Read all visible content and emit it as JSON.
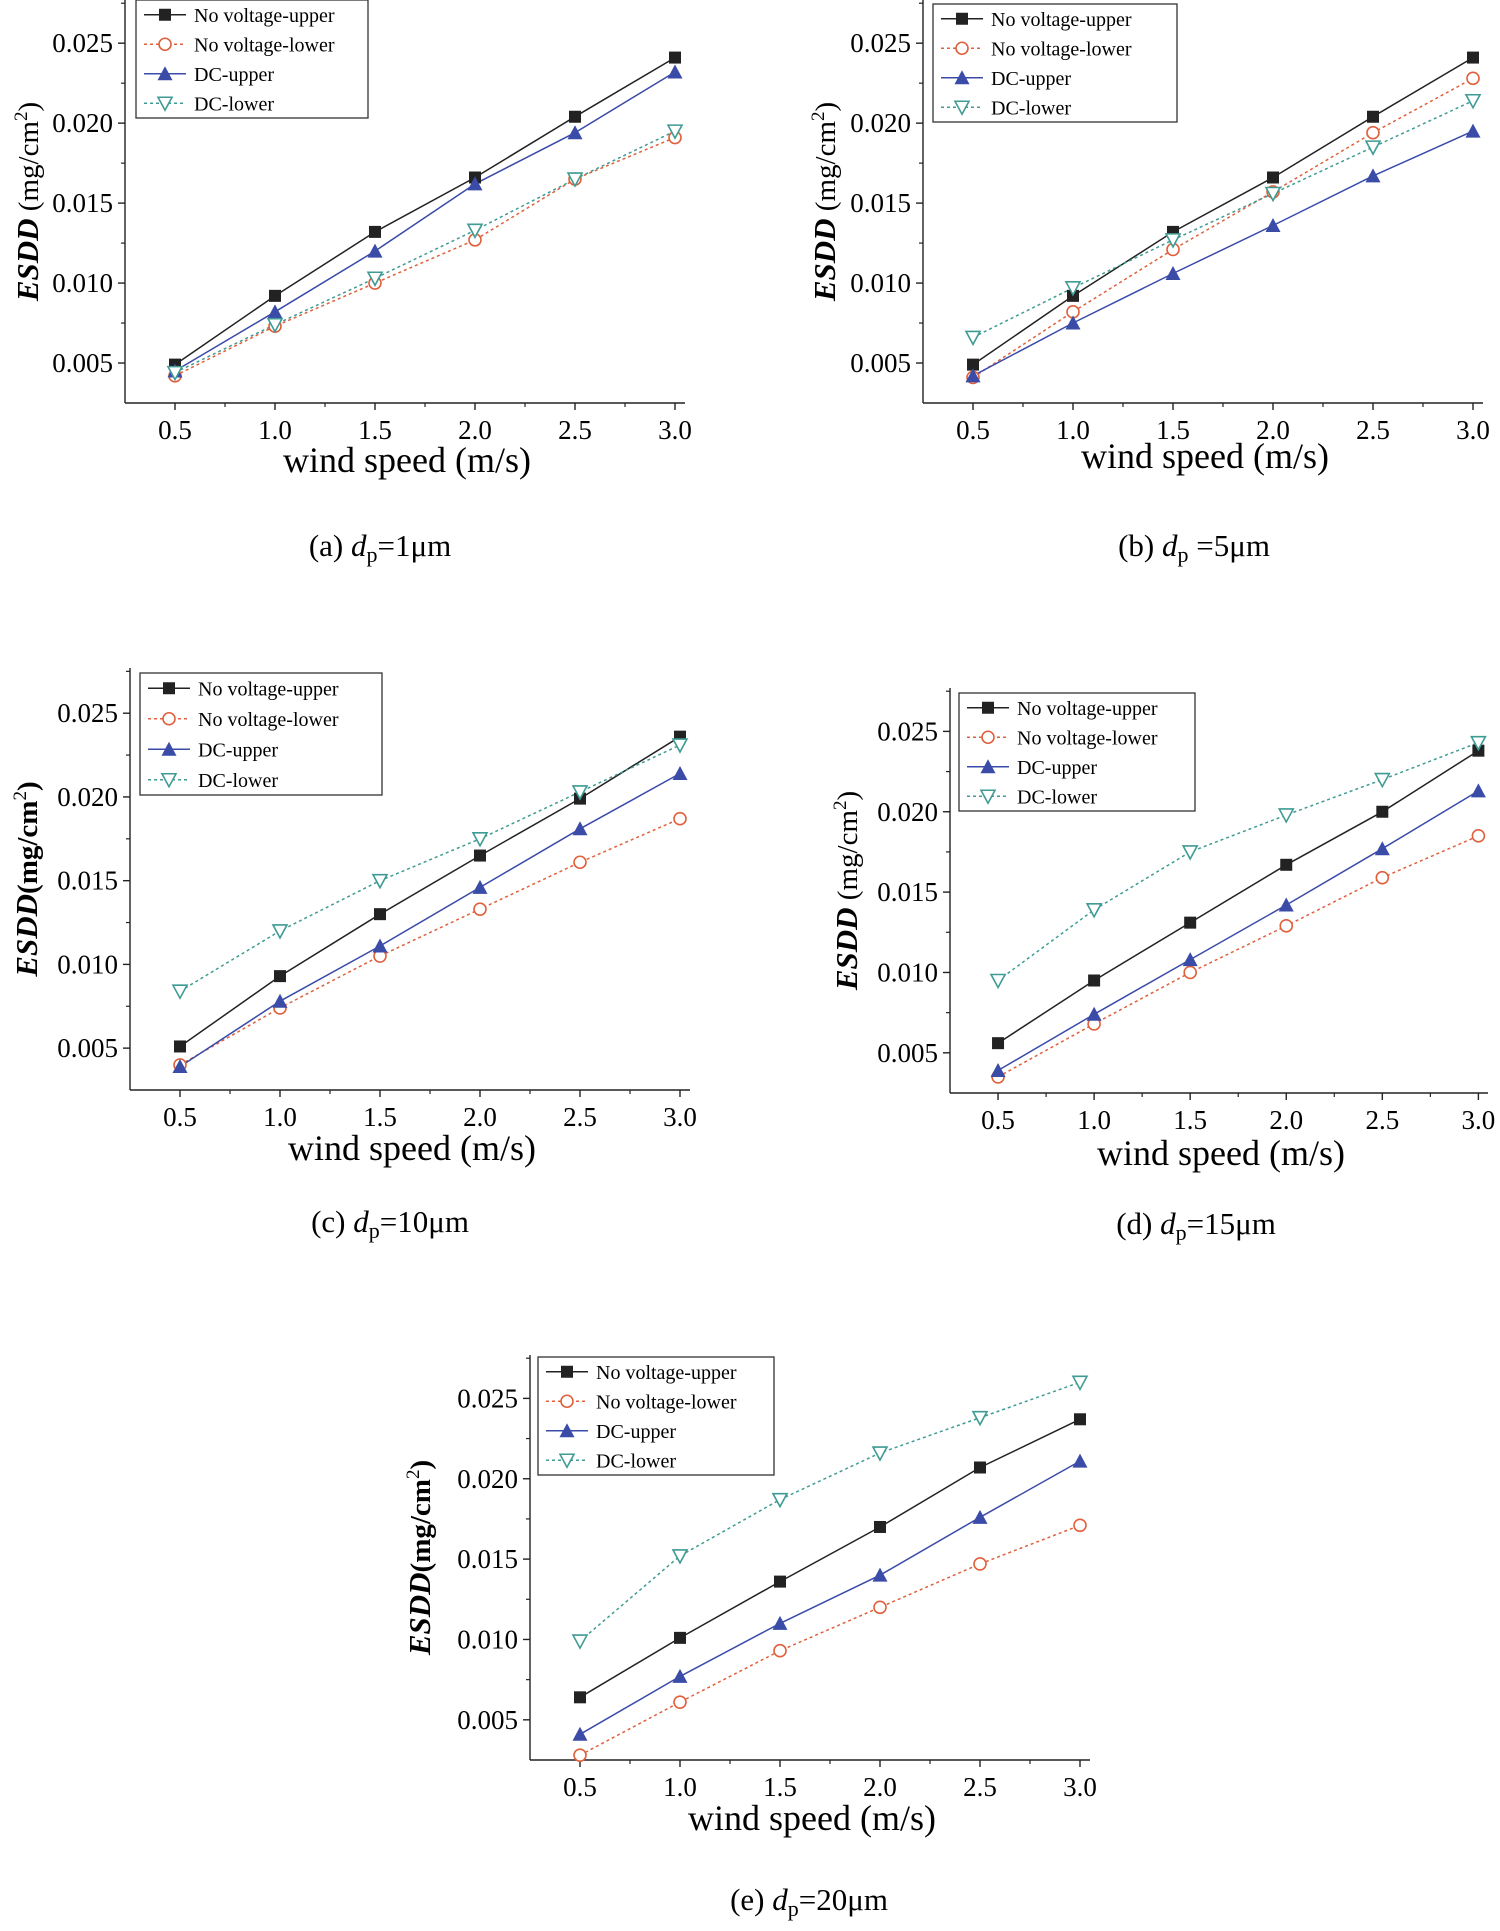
{
  "figure": {
    "series_styles": [
      {
        "name": "No voltage-upper",
        "color": "#222222",
        "marker": "square",
        "dashed": false
      },
      {
        "name": "No voltage-lower",
        "color": "#e0603c",
        "marker": "circle",
        "dashed": true
      },
      {
        "name": "DC-upper",
        "color": "#3a4ba8",
        "marker": "triangle-up",
        "dashed": false
      },
      {
        "name": "DC-lower",
        "color": "#3f9b93",
        "marker": "triangle-down",
        "dashed": true
      }
    ]
  },
  "chart_data": [
    {
      "id": "a",
      "type": "line",
      "caption_prefix": "(a) ",
      "caption_symbol": "d",
      "caption_sub": "p",
      "caption_suffix": "=1μm",
      "xlabel": "wind speed (m/s)",
      "ylabel_italic": "ESDD",
      "ylabel_units": " (mg/cm",
      "ylabel_sup": "2",
      "ylabel_close": ")",
      "x": [
        0.5,
        1.0,
        1.5,
        2.0,
        2.5,
        3.0
      ],
      "xticks": [
        "0.5",
        "1.0",
        "1.5",
        "2.0",
        "2.5",
        "3.0"
      ],
      "yticks": [
        "0.005",
        "0.010",
        "0.015",
        "0.020",
        "0.025"
      ],
      "xlim": [
        0.25,
        3.05
      ],
      "ylim": [
        0.0025,
        0.0277
      ],
      "legend_position": "top-left",
      "series": [
        {
          "name": "No voltage-upper",
          "values": [
            0.0049,
            0.0092,
            0.0132,
            0.0166,
            0.0204,
            0.0241
          ]
        },
        {
          "name": "No voltage-lower",
          "values": [
            0.0042,
            0.0073,
            0.01,
            0.0127,
            0.0165,
            0.0191
          ]
        },
        {
          "name": "DC-upper",
          "values": [
            0.0045,
            0.0082,
            0.012,
            0.0162,
            0.0194,
            0.0232
          ]
        },
        {
          "name": "DC-lower",
          "values": [
            0.0044,
            0.0074,
            0.0103,
            0.0133,
            0.0165,
            0.0195
          ]
        }
      ]
    },
    {
      "id": "b",
      "type": "line",
      "caption_prefix": "(b) ",
      "caption_symbol": "d",
      "caption_sub": "p",
      "caption_suffix": " =5μm",
      "xlabel": "wind speed (m/s)",
      "ylabel_italic": "ESDD",
      "ylabel_units": " (mg/cm",
      "ylabel_sup": "2",
      "ylabel_close": ")",
      "x": [
        0.5,
        1.0,
        1.5,
        2.0,
        2.5,
        3.0
      ],
      "xticks": [
        "0.5",
        "1.0",
        "1.5",
        "2.0",
        "2.5",
        "3.0"
      ],
      "yticks": [
        "0.005",
        "0.010",
        "0.015",
        "0.020",
        "0.025"
      ],
      "xlim": [
        0.25,
        3.05
      ],
      "ylim": [
        0.0025,
        0.0277
      ],
      "legend_position": "top-left",
      "series": [
        {
          "name": "No voltage-upper",
          "values": [
            0.0049,
            0.0092,
            0.0132,
            0.0166,
            0.0204,
            0.0241
          ]
        },
        {
          "name": "No voltage-lower",
          "values": [
            0.0041,
            0.0082,
            0.0121,
            0.0157,
            0.0194,
            0.0228
          ]
        },
        {
          "name": "DC-upper",
          "values": [
            0.0042,
            0.0075,
            0.0106,
            0.0136,
            0.0167,
            0.0195
          ]
        },
        {
          "name": "DC-lower",
          "values": [
            0.0066,
            0.0097,
            0.0127,
            0.0156,
            0.0185,
            0.0214
          ]
        }
      ]
    },
    {
      "id": "c",
      "type": "line",
      "caption_prefix": "(c) ",
      "caption_symbol": "d",
      "caption_sub": "p",
      "caption_suffix": "=10μm",
      "xlabel": "wind speed (m/s)",
      "ylabel_italic": "ESDD",
      "ylabel_units": "(mg/cm",
      "ylabel_sup": "2",
      "ylabel_close": ")",
      "x": [
        0.5,
        1.0,
        1.5,
        2.0,
        2.5,
        3.0
      ],
      "xticks": [
        "0.5",
        "1.0",
        "1.5",
        "2.0",
        "2.5",
        "3.0"
      ],
      "yticks": [
        "0.005",
        "0.010",
        "0.015",
        "0.020",
        "0.025"
      ],
      "xlim": [
        0.25,
        3.05
      ],
      "ylim": [
        0.0025,
        0.0277
      ],
      "legend_position": "top-left",
      "series": [
        {
          "name": "No voltage-upper",
          "values": [
            0.0051,
            0.0093,
            0.013,
            0.0165,
            0.0199,
            0.0236
          ]
        },
        {
          "name": "No voltage-lower",
          "values": [
            0.004,
            0.0074,
            0.0105,
            0.0133,
            0.0161,
            0.0187
          ]
        },
        {
          "name": "DC-upper",
          "values": [
            0.0039,
            0.0078,
            0.0111,
            0.0146,
            0.0181,
            0.0214
          ]
        },
        {
          "name": "DC-lower",
          "values": [
            0.0084,
            0.012,
            0.015,
            0.0175,
            0.0203,
            0.0231
          ]
        }
      ]
    },
    {
      "id": "d",
      "type": "line",
      "caption_prefix": "(d) ",
      "caption_symbol": "d",
      "caption_sub": "p",
      "caption_suffix": "=15μm",
      "xlabel": "wind speed (m/s)",
      "ylabel_italic": "ESDD",
      "ylabel_units": " (mg/cm",
      "ylabel_sup": "2",
      "ylabel_close": ")",
      "x": [
        0.5,
        1.0,
        1.5,
        2.0,
        2.5,
        3.0
      ],
      "xticks": [
        "0.5",
        "1.0",
        "1.5",
        "2.0",
        "2.5",
        "3.0"
      ],
      "yticks": [
        "0.005",
        "0.010",
        "0.015",
        "0.020",
        "0.025"
      ],
      "xlim": [
        0.25,
        3.05
      ],
      "ylim": [
        0.0025,
        0.0277
      ],
      "legend_position": "top-left",
      "series": [
        {
          "name": "No voltage-upper",
          "values": [
            0.0056,
            0.0095,
            0.0131,
            0.0167,
            0.02,
            0.0238
          ]
        },
        {
          "name": "No voltage-lower",
          "values": [
            0.0035,
            0.0068,
            0.01,
            0.0129,
            0.0159,
            0.0185
          ]
        },
        {
          "name": "DC-upper",
          "values": [
            0.0039,
            0.0074,
            0.0108,
            0.0142,
            0.0177,
            0.0213
          ]
        },
        {
          "name": "DC-lower",
          "values": [
            0.0095,
            0.0139,
            0.0175,
            0.0198,
            0.022,
            0.0243
          ]
        }
      ]
    },
    {
      "id": "e",
      "type": "line",
      "caption_prefix": "(e) ",
      "caption_symbol": "d",
      "caption_sub": "p",
      "caption_suffix": "=20μm",
      "xlabel": "wind speed (m/s)",
      "ylabel_italic": "ESDD",
      "ylabel_units": "(mg/cm",
      "ylabel_sup": "2",
      "ylabel_close": ")",
      "x": [
        0.5,
        1.0,
        1.5,
        2.0,
        2.5,
        3.0
      ],
      "xticks": [
        "0.5",
        "1.0",
        "1.5",
        "2.0",
        "2.5",
        "3.0"
      ],
      "yticks": [
        "0.005",
        "0.010",
        "0.015",
        "0.020",
        "0.025"
      ],
      "xlim": [
        0.25,
        3.05
      ],
      "ylim": [
        0.0025,
        0.0277
      ],
      "legend_position": "top-left",
      "series": [
        {
          "name": "No voltage-upper",
          "values": [
            0.0064,
            0.0101,
            0.0136,
            0.017,
            0.0207,
            0.0237
          ]
        },
        {
          "name": "No voltage-lower",
          "values": [
            0.0028,
            0.0061,
            0.0093,
            0.012,
            0.0147,
            0.0171
          ]
        },
        {
          "name": "DC-upper",
          "values": [
            0.0041,
            0.0077,
            0.011,
            0.014,
            0.0176,
            0.0211
          ]
        },
        {
          "name": "DC-lower",
          "values": [
            0.0099,
            0.0152,
            0.0187,
            0.0216,
            0.0238,
            0.026
          ]
        }
      ]
    }
  ]
}
